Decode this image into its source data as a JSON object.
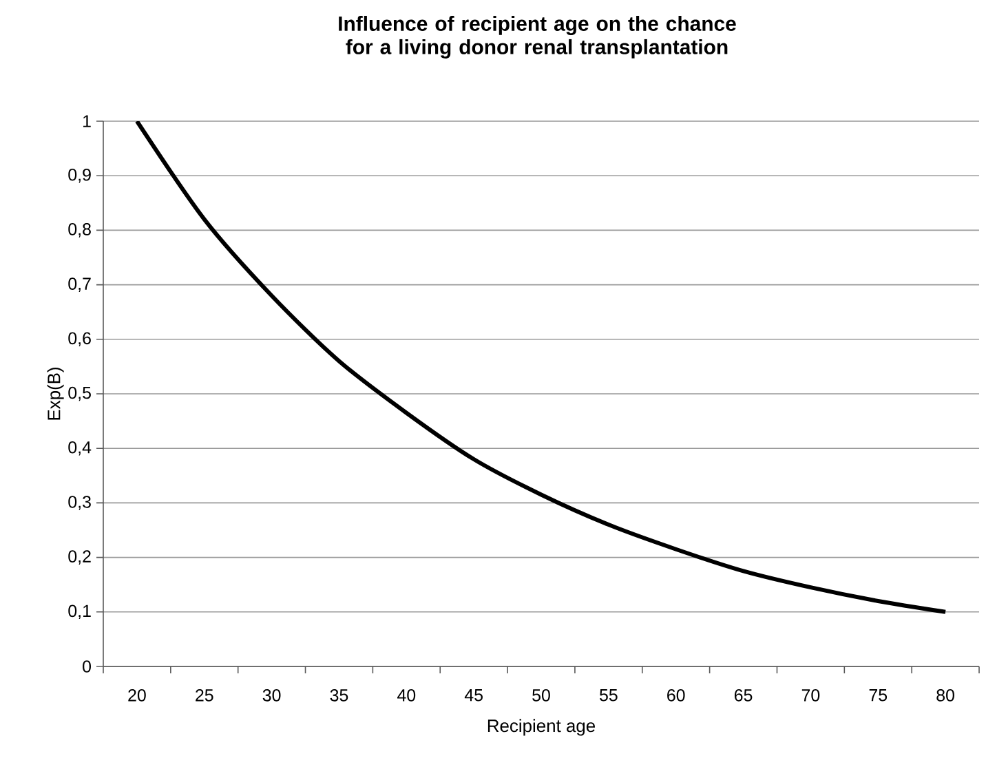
{
  "chart_data": {
    "type": "line",
    "title": "Influence of recipient age on the chance for a living donor renal transplantation",
    "xlabel": "Recipient age",
    "ylabel": "Exp(B)",
    "categories": [
      "20",
      "25",
      "30",
      "35",
      "40",
      "45",
      "50",
      "55",
      "60",
      "65",
      "70",
      "75",
      "80"
    ],
    "series": [
      {
        "color": "#000000",
        "values": [
          1.0,
          0.82,
          0.68,
          0.56,
          0.465,
          0.38,
          0.315,
          0.26,
          0.215,
          0.175,
          0.145,
          0.12,
          0.1
        ]
      }
    ],
    "ylim": [
      0,
      1
    ],
    "yticks": [
      0,
      {
        "value": 0.1,
        "label": "0,1"
      },
      {
        "value": 0.2,
        "label": "0,2"
      },
      {
        "value": 0.3,
        "label": "0,3"
      },
      {
        "value": 0.4,
        "label": "0,4"
      },
      {
        "value": 0.5,
        "label": "0,5"
      },
      {
        "value": 0.6,
        "label": "0,6"
      },
      {
        "value": 0.7,
        "label": "0,7"
      },
      {
        "value": 0.8,
        "label": "0,8"
      },
      {
        "value": 0.9,
        "label": "0,9"
      },
      1
    ],
    "grid": "y",
    "marker": "none",
    "line_style": "solid"
  }
}
